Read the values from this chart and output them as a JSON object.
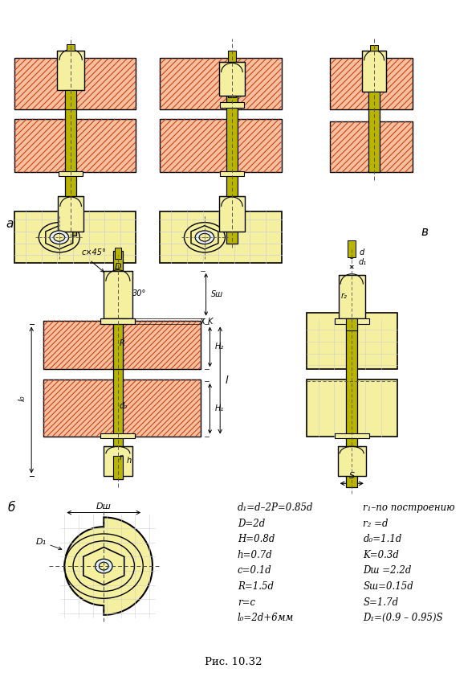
{
  "bg_color": "#ffffff",
  "yellow_fill": "#f5f0a0",
  "olive_fill": "#b8b400",
  "hatch_bg": "#f5c0a0",
  "hatch_color": "#cc3300",
  "outline_color": "#000000",
  "grid_color": "#d0d0d0",
  "dim_color": "#000000",
  "formula_lines_left": [
    "d₁=d–2P=0.85d",
    "D=2d",
    "H=0.8d",
    "h=0.7d",
    "c=0.1d",
    "R=1.5d",
    "r=c",
    "l₀=2d+6мм"
  ],
  "formula_lines_right": [
    "r₁–по построению",
    "r₂ =d",
    "d₀=1.1d",
    "K=0.3d",
    "Dш =2.2d",
    "Sш=0.15d",
    "S=1.7d",
    "D₁=(0.9 – 0.95)S"
  ],
  "caption": "Рис. 10.32",
  "label_a": "а",
  "label_b": "б",
  "label_v": "в"
}
